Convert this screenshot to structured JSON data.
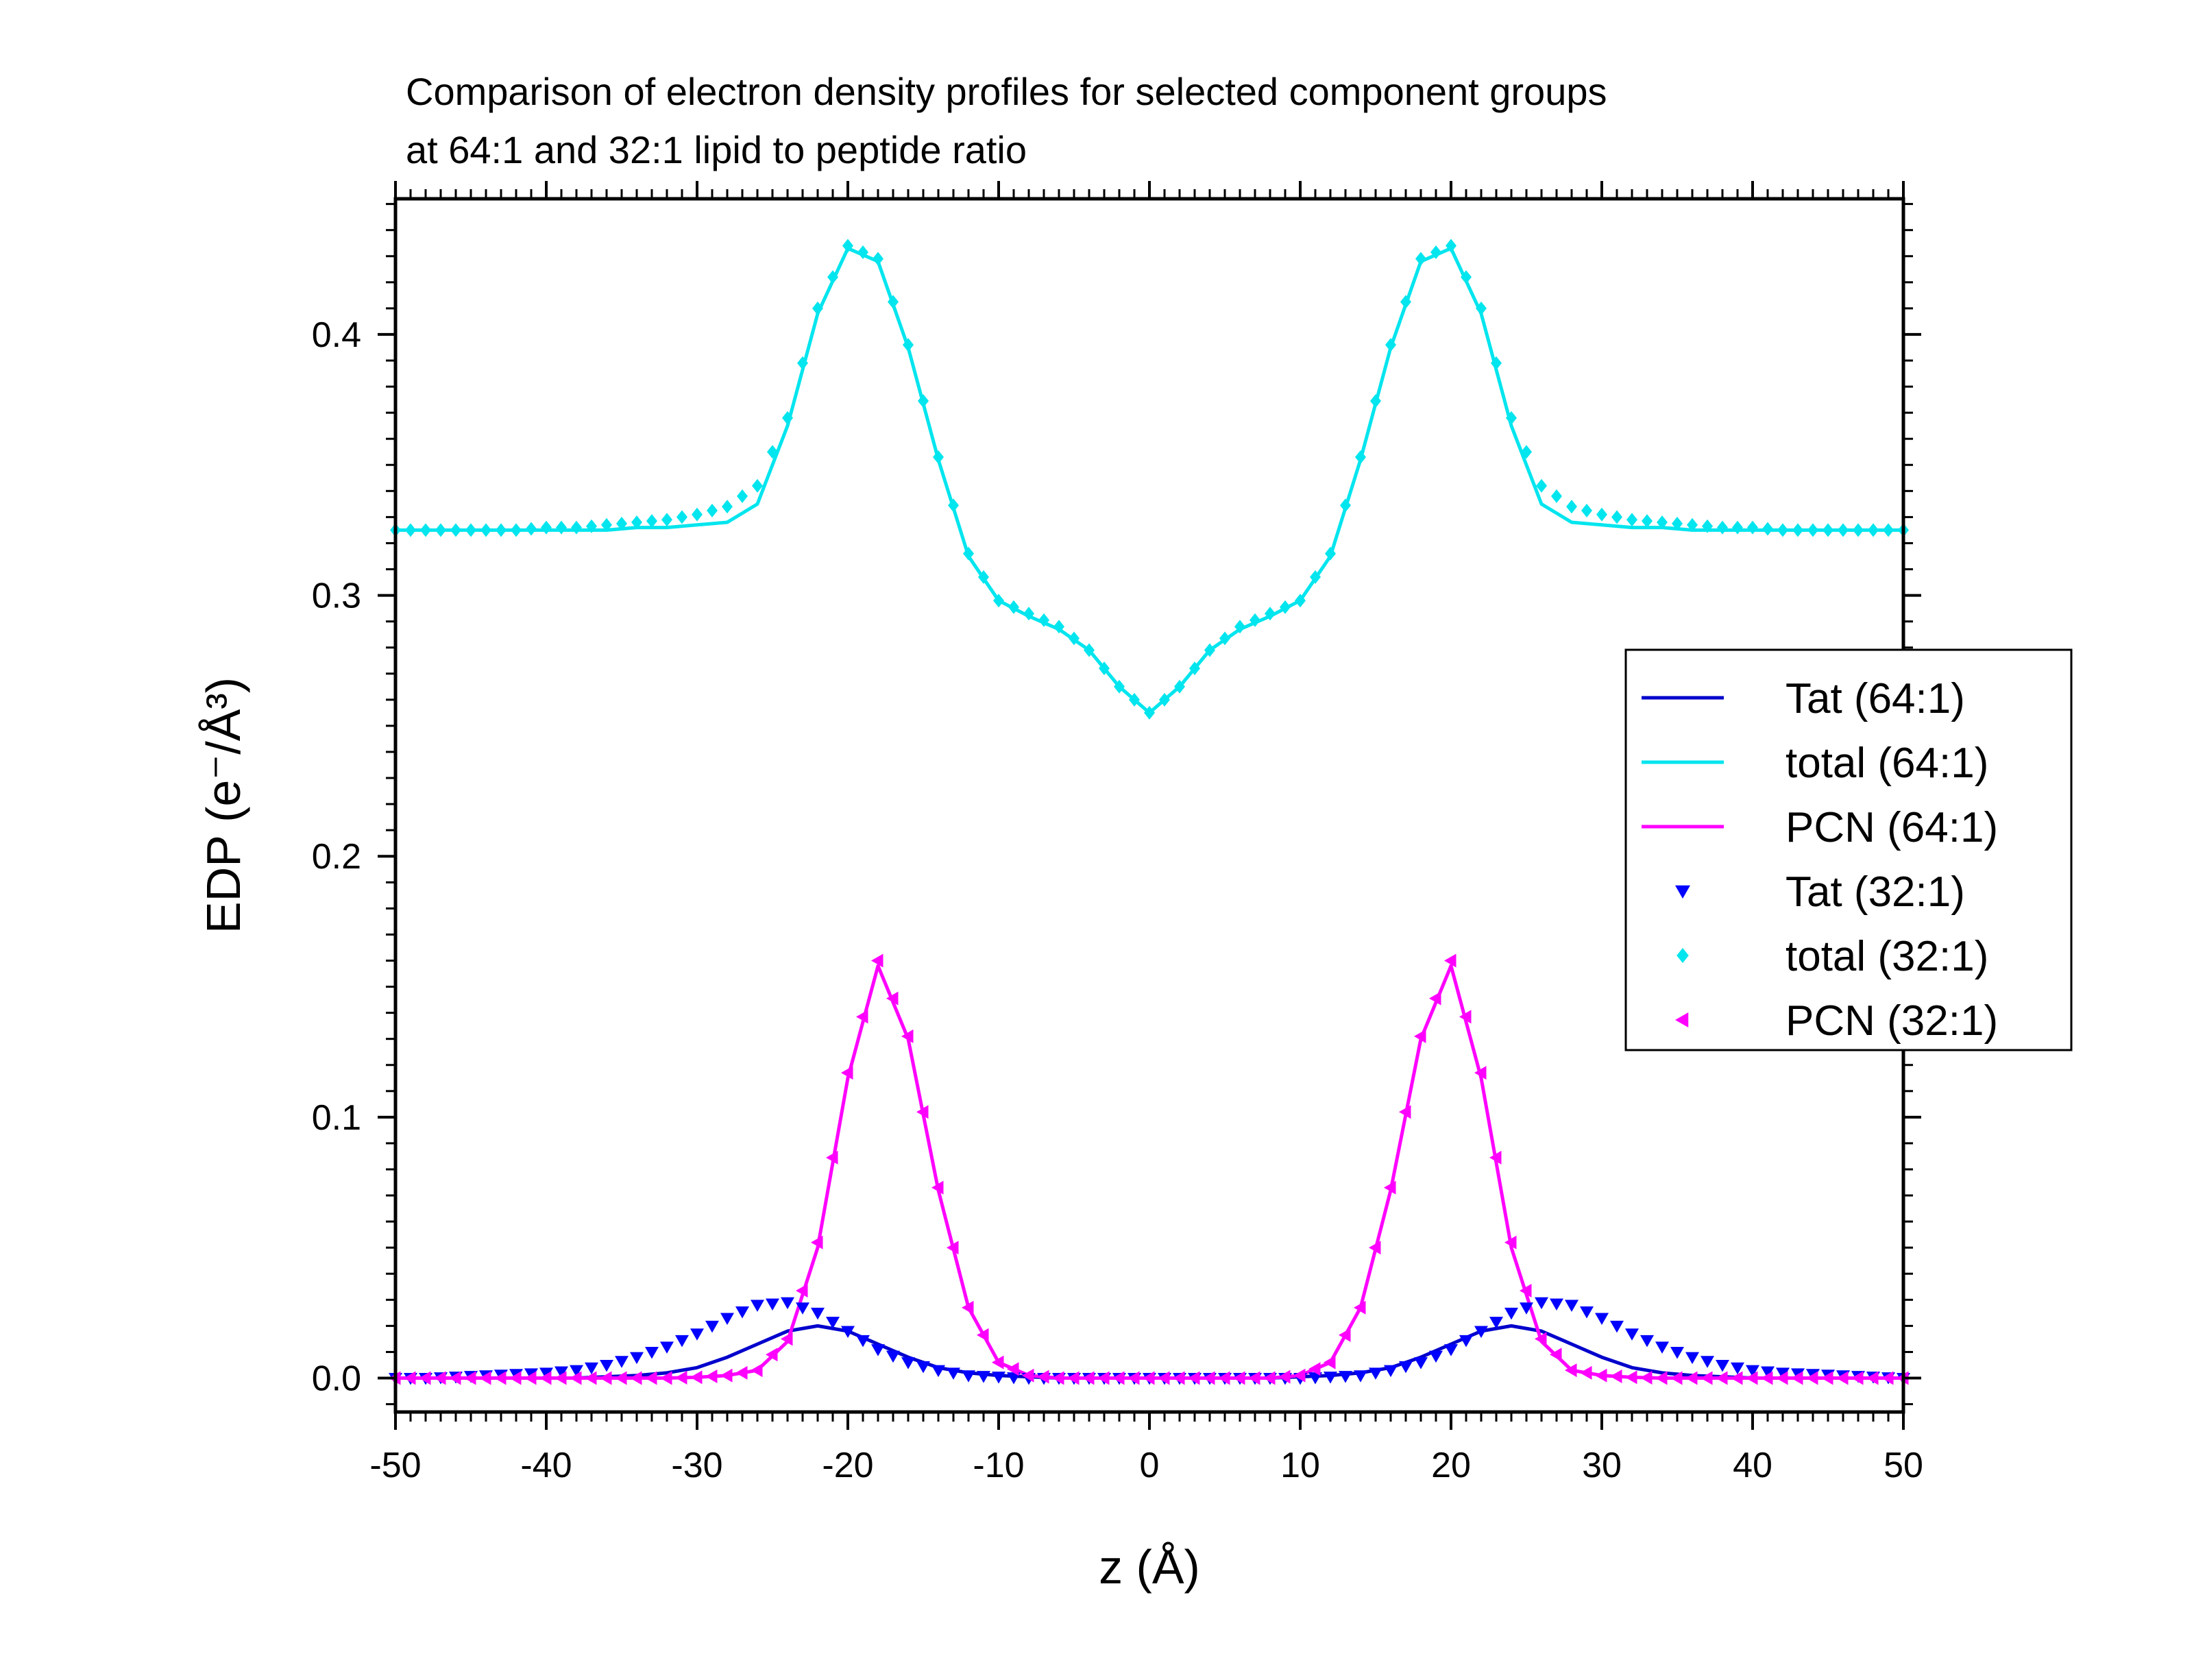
{
  "chart_data": {
    "type": "line",
    "title": [
      "Comparison of electron density profiles for selected component groups",
      "at 64:1 and 32:1 lipid to peptide ratio"
    ],
    "xlabel": "z (Å)",
    "ylabel": "EDP (e⁻/Å³)",
    "xlim": [
      -50,
      50
    ],
    "ylim": [
      -0.013,
      0.452
    ],
    "x_ticks": [
      -50,
      -40,
      -30,
      -20,
      -10,
      0,
      10,
      20,
      30,
      40,
      50
    ],
    "x_tick_labels": [
      "-50",
      "-40",
      "-30",
      "-20",
      "-10",
      "0",
      "10",
      "20",
      "30",
      "40",
      "50"
    ],
    "y_ticks": [
      0.0,
      0.1,
      0.2,
      0.3,
      0.4
    ],
    "y_tick_labels": [
      "0.0",
      "0.1",
      "0.2",
      "0.3",
      "0.4"
    ],
    "legend_position": "right",
    "grid": false,
    "x": [
      -50,
      -48,
      -46,
      -44,
      -42,
      -40,
      -38,
      -36,
      -34,
      -32,
      -30,
      -28,
      -26,
      -24,
      -22,
      -20,
      -18,
      -16,
      -14,
      -12,
      -10,
      -8,
      -6,
      -4,
      -2,
      0,
      2,
      4,
      6,
      8,
      10,
      12,
      14,
      16,
      18,
      20,
      22,
      24,
      26,
      28,
      30,
      32,
      34,
      36,
      38,
      40,
      42,
      44,
      46,
      48,
      50
    ],
    "series": [
      {
        "name": "Tat (64:1)",
        "style": "line",
        "color": "#0000cc",
        "values": [
          0.0,
          0.0,
          0.0,
          0.0,
          0.0,
          0.0,
          0.0,
          0.0005,
          0.001,
          0.002,
          0.004,
          0.008,
          0.013,
          0.018,
          0.02,
          0.018,
          0.013,
          0.008,
          0.004,
          0.002,
          0.001,
          0.0005,
          0.0,
          0.0,
          0.0,
          0.0,
          0.0,
          0.0,
          0.0,
          0.0,
          0.0005,
          0.001,
          0.002,
          0.004,
          0.008,
          0.013,
          0.018,
          0.02,
          0.018,
          0.013,
          0.008,
          0.004,
          0.002,
          0.001,
          0.0005,
          0.0,
          0.0,
          0.0,
          0.0,
          0.0,
          0.0
        ]
      },
      {
        "name": "total (64:1)",
        "style": "line",
        "color": "#00e5ee",
        "values": [
          0.325,
          0.325,
          0.325,
          0.325,
          0.325,
          0.325,
          0.325,
          0.325,
          0.326,
          0.326,
          0.327,
          0.328,
          0.335,
          0.365,
          0.408,
          0.433,
          0.428,
          0.395,
          0.352,
          0.315,
          0.298,
          0.292,
          0.287,
          0.279,
          0.265,
          0.255,
          0.265,
          0.279,
          0.287,
          0.292,
          0.298,
          0.315,
          0.352,
          0.395,
          0.428,
          0.433,
          0.408,
          0.365,
          0.335,
          0.328,
          0.327,
          0.326,
          0.326,
          0.325,
          0.325,
          0.325,
          0.325,
          0.325,
          0.325,
          0.325,
          0.325
        ]
      },
      {
        "name": "PCN (64:1)",
        "style": "line",
        "color": "#ff00ff",
        "values": [
          0.0,
          0.0,
          0.0,
          0.0,
          0.0,
          0.0,
          0.0,
          0.0,
          0.0,
          0.0,
          0.0003,
          0.001,
          0.003,
          0.014,
          0.05,
          0.115,
          0.158,
          0.13,
          0.072,
          0.027,
          0.006,
          0.001,
          0.0,
          0.0,
          0.0,
          0.0,
          0.0,
          0.0,
          0.0,
          0.0,
          0.001,
          0.006,
          0.027,
          0.072,
          0.13,
          0.158,
          0.115,
          0.05,
          0.014,
          0.003,
          0.001,
          0.0003,
          0.0,
          0.0,
          0.0,
          0.0,
          0.0,
          0.0,
          0.0,
          0.0,
          0.0
        ]
      },
      {
        "name": "Tat (32:1)",
        "style": "triangle-down",
        "color": "#0000ff",
        "values": [
          0.0,
          0.0,
          0.0005,
          0.001,
          0.0015,
          0.002,
          0.003,
          0.005,
          0.008,
          0.012,
          0.017,
          0.023,
          0.028,
          0.029,
          0.025,
          0.018,
          0.011,
          0.006,
          0.003,
          0.001,
          0.0005,
          0.0,
          0.0,
          0.0,
          0.0,
          0.0,
          0.0,
          0.0,
          0.0,
          0.0,
          0.0,
          0.0005,
          0.001,
          0.003,
          0.006,
          0.011,
          0.018,
          0.025,
          0.029,
          0.028,
          0.023,
          0.017,
          0.012,
          0.008,
          0.005,
          0.003,
          0.002,
          0.0015,
          0.001,
          0.0005,
          0.0
        ]
      },
      {
        "name": "total (32:1)",
        "style": "diamond",
        "color": "#00e5ee",
        "values": [
          0.325,
          0.325,
          0.325,
          0.325,
          0.325,
          0.326,
          0.326,
          0.327,
          0.328,
          0.329,
          0.331,
          0.334,
          0.342,
          0.368,
          0.41,
          0.434,
          0.429,
          0.396,
          0.353,
          0.316,
          0.298,
          0.293,
          0.288,
          0.279,
          0.265,
          0.255,
          0.265,
          0.279,
          0.288,
          0.293,
          0.298,
          0.316,
          0.353,
          0.396,
          0.429,
          0.434,
          0.41,
          0.368,
          0.342,
          0.334,
          0.331,
          0.329,
          0.328,
          0.327,
          0.326,
          0.326,
          0.325,
          0.325,
          0.325,
          0.325,
          0.325
        ]
      },
      {
        "name": "PCN (32:1)",
        "style": "triangle-left",
        "color": "#ff00ff",
        "values": [
          0.0,
          0.0,
          0.0,
          0.0,
          0.0,
          0.0,
          0.0,
          0.0,
          0.0,
          0.0,
          0.0003,
          0.001,
          0.003,
          0.015,
          0.052,
          0.117,
          0.16,
          0.131,
          0.073,
          0.027,
          0.006,
          0.001,
          0.0,
          0.0,
          0.0,
          0.0,
          0.0,
          0.0,
          0.0,
          0.0,
          0.001,
          0.006,
          0.027,
          0.073,
          0.131,
          0.16,
          0.117,
          0.052,
          0.015,
          0.003,
          0.001,
          0.0003,
          0.0,
          0.0,
          0.0,
          0.0,
          0.0,
          0.0,
          0.0,
          0.0,
          0.0
        ]
      }
    ]
  }
}
